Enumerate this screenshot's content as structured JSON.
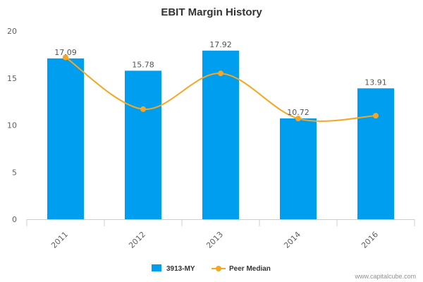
{
  "chart_data": {
    "type": "bar",
    "title": "EBIT Margin History",
    "categories": [
      "2011",
      "2012",
      "2013",
      "2014",
      "2016"
    ],
    "series": [
      {
        "name": "3913-MY",
        "type": "bar",
        "color": "#009EEF",
        "values": [
          17.09,
          15.78,
          17.92,
          10.72,
          13.91
        ],
        "labels": [
          "17.09",
          "15.78",
          "17.92",
          "10.72",
          "13.91"
        ]
      },
      {
        "name": "Peer Median",
        "type": "line",
        "color": "#F5A623",
        "smooth": true,
        "values": [
          17.2,
          11.7,
          15.5,
          10.7,
          11.0
        ]
      }
    ],
    "yticks": [
      "0",
      "5",
      "10",
      "15",
      "20"
    ],
    "ylim": [
      0,
      20
    ],
    "grid": false,
    "legend_position": "bottom-center"
  },
  "credit": "www.capitalcube.com"
}
